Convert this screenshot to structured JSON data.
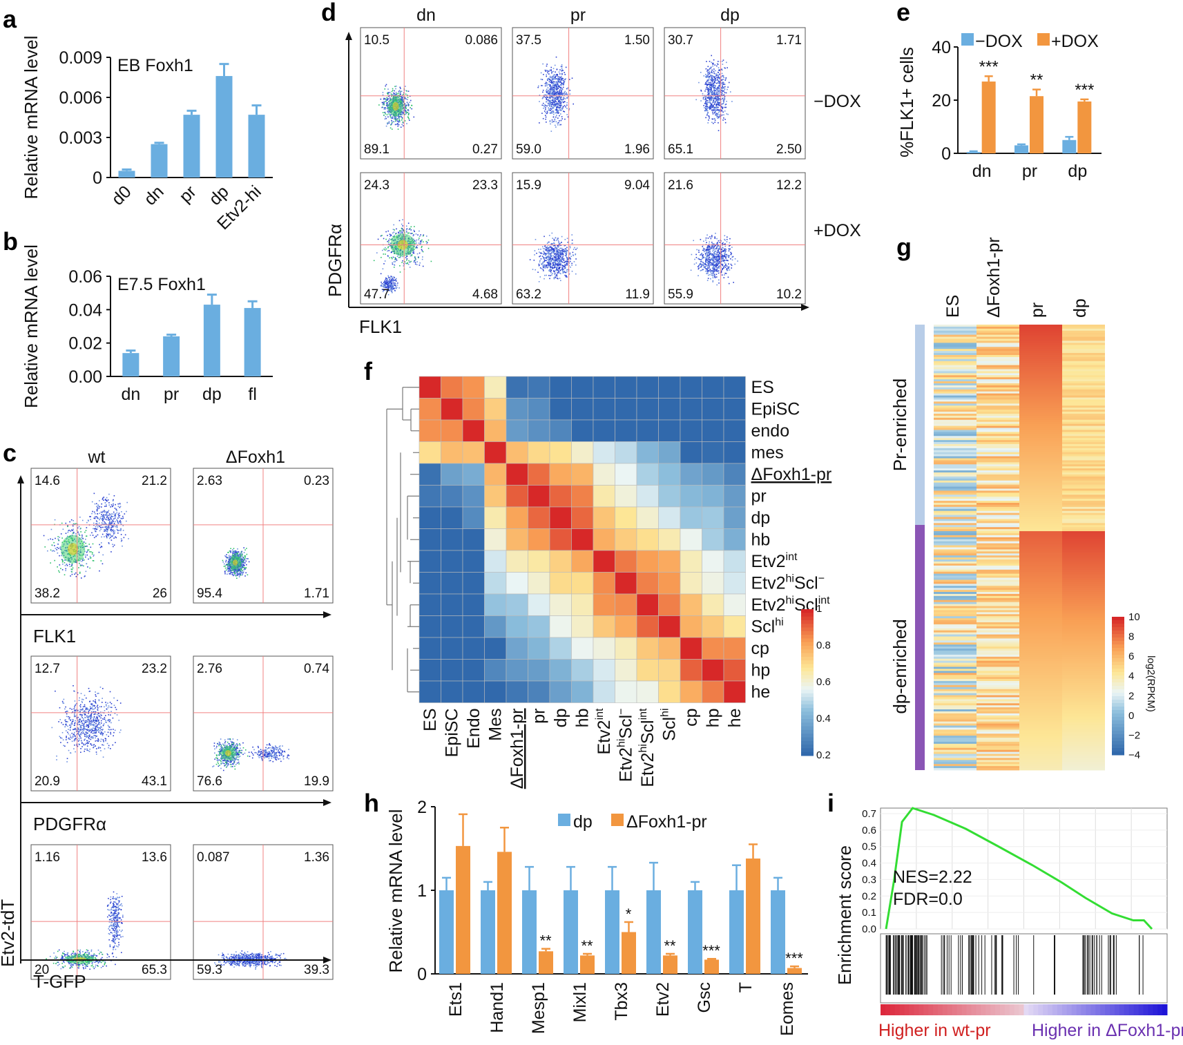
{
  "colors": {
    "blue": "#6aaee0",
    "orange": "#f2963f",
    "gate": "#f08080",
    "gsea": "#33dd33"
  },
  "panels": {
    "a": "a",
    "b": "b",
    "c": "c",
    "d": "d",
    "e": "e",
    "f": "f",
    "g": "g",
    "h": "h",
    "i": "i"
  },
  "chart_data": [
    {
      "id": "a",
      "type": "bar",
      "title": "EB Foxh1",
      "ylabel": "Relative mRNA level",
      "ylim": [
        0,
        0.009
      ],
      "yticks": [
        "0.009",
        "0.006",
        "0.003",
        "0"
      ],
      "categories": [
        "d0",
        "dn",
        "pr",
        "dp",
        "Etv2-hi"
      ],
      "values": [
        0.0005,
        0.0025,
        0.0047,
        0.0076,
        0.0047
      ],
      "errors": [
        0.0001,
        0.0001,
        0.0003,
        0.0009,
        0.0007
      ]
    },
    {
      "id": "b",
      "type": "bar",
      "title": "E7.5 Foxh1",
      "ylabel": "Relative mRNA level",
      "ylim": [
        0,
        0.06
      ],
      "yticks": [
        "0.06",
        "0.04",
        "0.02",
        "0.00"
      ],
      "categories": [
        "dn",
        "pr",
        "dp",
        "fl"
      ],
      "values": [
        0.014,
        0.024,
        0.043,
        0.041
      ],
      "errors": [
        0.0015,
        0.001,
        0.006,
        0.004
      ]
    },
    {
      "id": "e",
      "type": "bar",
      "ylabel": "%FLK1+ cells",
      "ylim": [
        0,
        40
      ],
      "yticks": [
        "40",
        "20",
        "0"
      ],
      "categories": [
        "dn",
        "pr",
        "dp"
      ],
      "series": [
        {
          "name": "−DOX",
          "values": [
            0.5,
            3,
            5
          ],
          "errors": [
            0.3,
            0.4,
            1.2
          ]
        },
        {
          "name": "+DOX",
          "values": [
            27,
            21.5,
            19.5
          ],
          "errors": [
            2,
            2.5,
            0.8
          ]
        }
      ],
      "sig": [
        "***",
        "**",
        "***"
      ]
    },
    {
      "id": "h",
      "type": "bar",
      "ylabel": "Relative mRNA level",
      "ylim": [
        0,
        2
      ],
      "yticks": [
        "2",
        "1",
        "0"
      ],
      "categories": [
        "Ets1",
        "Hand1",
        "Mesp1",
        "Mixl1",
        "Tbx3",
        "Etv2",
        "Gsc",
        "T",
        "Eomes"
      ],
      "series": [
        {
          "name": "dp",
          "values": [
            1,
            1,
            1,
            1,
            1,
            1,
            1,
            1,
            1
          ],
          "errors": [
            0.15,
            0.1,
            0.28,
            0.28,
            0.28,
            0.33,
            0.1,
            0.3,
            0.15
          ]
        },
        {
          "name": "ΔFoxh1-pr",
          "values": [
            1.53,
            1.46,
            0.27,
            0.22,
            0.5,
            0.22,
            0.17,
            1.38,
            0.07
          ],
          "errors": [
            0.38,
            0.29,
            0.03,
            0.02,
            0.12,
            0.02,
            0.01,
            0.17,
            0.02
          ]
        }
      ],
      "sig": [
        "",
        "",
        "**",
        "**",
        "*",
        "**",
        "***",
        "",
        "***"
      ]
    },
    {
      "id": "i",
      "type": "line",
      "ylabel": "Enrichment score",
      "ylim": [
        0,
        0.7
      ],
      "yticks": [
        "0.7",
        "0.6",
        "0.5",
        "0.4",
        "0.3",
        "0.2",
        "0.1",
        "0.0"
      ],
      "x": [
        0,
        0.03,
        0.06,
        0.1,
        0.18,
        0.3,
        0.42,
        0.55,
        0.66,
        0.75,
        0.85,
        0.93,
        0.97,
        1.0
      ],
      "y": [
        0.0,
        0.28,
        0.62,
        0.7,
        0.66,
        0.58,
        0.48,
        0.37,
        0.27,
        0.18,
        0.09,
        0.05,
        0.05,
        0.0
      ],
      "annotations": [
        "NES=2.22",
        "FDR=0.0"
      ],
      "left_label": "Higher in wt-pr",
      "right_label": "Higher in ΔFoxh1-pr"
    }
  ],
  "panel_c": {
    "col_titles": [
      "wt",
      "ΔFoxh1"
    ],
    "row_xlabels": [
      "FLK1",
      "PDGFRα",
      "T-GFP"
    ],
    "ylabel": "Etv2-tdT",
    "plots": [
      [
        [
          "14.6",
          "21.2",
          "38.2",
          "26"
        ],
        [
          "2.63",
          "0.23",
          "95.4",
          "1.71"
        ]
      ],
      [
        [
          "12.7",
          "23.2",
          "20.9",
          "43.1"
        ],
        [
          "2.76",
          "0.74",
          "76.6",
          "19.9"
        ]
      ],
      [
        [
          "1.16",
          "13.6",
          "20",
          "65.3"
        ],
        [
          "0.087",
          "1.36",
          "59.3",
          "39.3"
        ]
      ]
    ]
  },
  "panel_d": {
    "col_titles": [
      "dn",
      "pr",
      "dp"
    ],
    "row_labels": [
      "−DOX",
      "+DOX"
    ],
    "xlabel": "FLK1",
    "ylabel": "PDGFRα",
    "plots": [
      [
        [
          "10.5",
          "0.086",
          "89.1",
          "0.27"
        ],
        [
          "37.5",
          "1.50",
          "59.0",
          "1.96"
        ],
        [
          "30.7",
          "1.71",
          "65.1",
          "2.50"
        ]
      ],
      [
        [
          "24.3",
          "23.3",
          "47.7",
          "4.68"
        ],
        [
          "15.9",
          "9.04",
          "63.2",
          "11.9"
        ],
        [
          "21.6",
          "12.2",
          "55.9",
          "10.2"
        ]
      ]
    ]
  },
  "panel_f": {
    "rows": [
      "ES",
      "EpiSC",
      "endo",
      "mes",
      "ΔFoxh1-pr",
      "pr",
      "dp",
      "hb",
      "Etv2int",
      "Etv2hiScl−",
      "Etv2hiSclint",
      "Sclhi",
      "cp",
      "hp",
      "he"
    ],
    "cols": [
      "ES",
      "EpiSC",
      "Endo",
      "Mes",
      "ΔFoxh1-pr",
      "pr",
      "dp",
      "hb",
      "Etv2int",
      "Etv2hiScl−",
      "Etv2hiSclint",
      "Sclhi",
      "cp",
      "hp",
      "he"
    ],
    "scale_ticks": [
      "1",
      "0.8",
      "0.6",
      "0.4",
      "0.2"
    ]
  },
  "panel_g": {
    "cols": [
      "ES",
      "ΔFoxh1-pr",
      "pr",
      "dp"
    ],
    "groups": [
      "Pr-enriched",
      "dp-enriched"
    ],
    "scale_ticks": [
      "10",
      "8",
      "6",
      "4",
      "2",
      "0",
      "−2",
      "−4"
    ],
    "scale_label": "log2(RPKM)"
  }
}
